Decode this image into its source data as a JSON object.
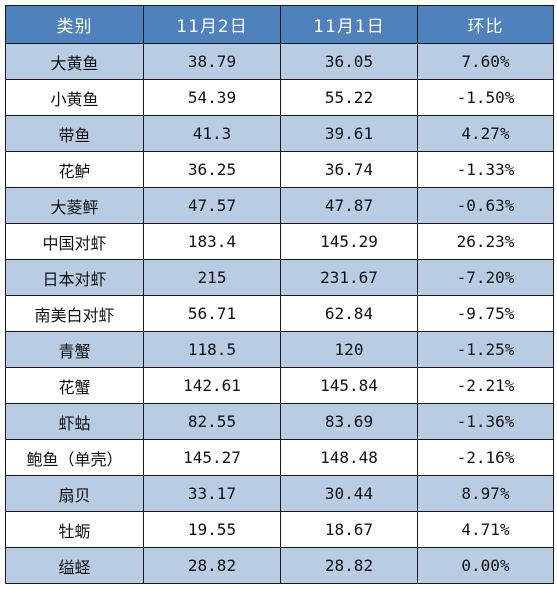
{
  "table": {
    "headers": [
      "类别",
      "11月2日",
      "11月1日",
      "环比"
    ],
    "rows": [
      [
        "大黄鱼",
        "38.79",
        "36.05",
        "7.60%"
      ],
      [
        "小黄鱼",
        "54.39",
        "55.22",
        "-1.50%"
      ],
      [
        "带鱼",
        "41.3",
        "39.61",
        "4.27%"
      ],
      [
        "花鲈",
        "36.25",
        "36.74",
        "-1.33%"
      ],
      [
        "大菱鲆",
        "47.57",
        "47.87",
        "-0.63%"
      ],
      [
        "中国对虾",
        "183.4",
        "145.29",
        "26.23%"
      ],
      [
        "日本对虾",
        "215",
        "231.67",
        "-7.20%"
      ],
      [
        "南美白对虾",
        "56.71",
        "62.84",
        "-9.75%"
      ],
      [
        "青蟹",
        "118.5",
        "120",
        "-1.25%"
      ],
      [
        "花蟹",
        "142.61",
        "145.84",
        "-2.21%"
      ],
      [
        "虾蛄",
        "82.55",
        "83.69",
        "-1.36%"
      ],
      [
        "鲍鱼（单壳）",
        "145.27",
        "148.48",
        "-2.16%"
      ],
      [
        "扇贝",
        "33.17",
        "30.44",
        "8.97%"
      ],
      [
        "牡蛎",
        "19.55",
        "18.67",
        "4.71%"
      ],
      [
        "缢蛏",
        "28.82",
        "28.82",
        "0.00%"
      ]
    ]
  },
  "colors": {
    "header_bg": "#4f81bd",
    "header_text": "#ffffff",
    "row_alt_bg": "#b8cce4",
    "row_plain_bg": "#ffffff",
    "border": "#1a1a1a"
  }
}
